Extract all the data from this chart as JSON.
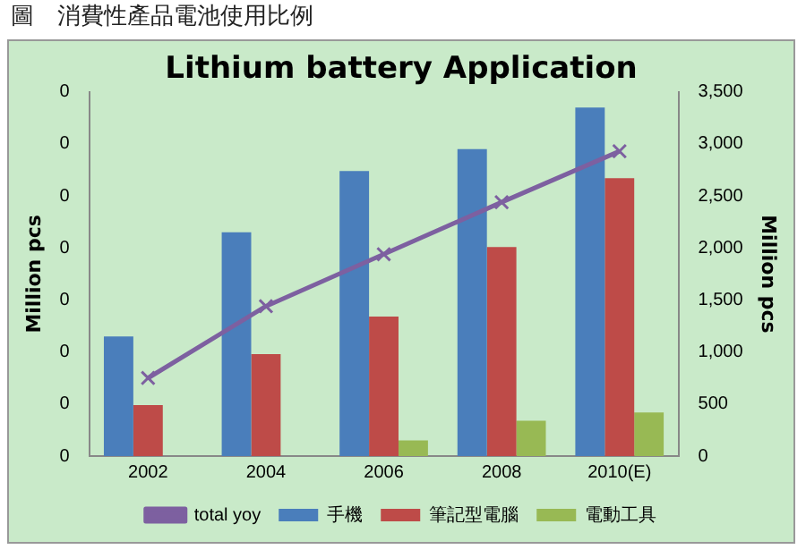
{
  "chart_data": {
    "type": "bar",
    "title": "圖　消費性產品電池使用比例",
    "subtitle": "Lithium battery Application",
    "ylabel": "Million pcs",
    "y2label": "Million pcs",
    "categories": [
      "2002",
      "2004",
      "2006",
      "2008",
      "2010(E)"
    ],
    "series": [
      {
        "name": "手機",
        "color": "#4a7ebb",
        "values": [
          1150,
          2150,
          2740,
          2950,
          3350
        ]
      },
      {
        "name": "筆記型電腦",
        "color": "#be4b48",
        "values": [
          490,
          980,
          1340,
          2010,
          2670
        ]
      },
      {
        "name": "電動工具",
        "color": "#98b954",
        "values": [
          0,
          0,
          150,
          340,
          420
        ]
      },
      {
        "name": "total yoy",
        "type": "line",
        "color": "#7d60a0",
        "marker": "cross",
        "values": [
          750,
          1440,
          1940,
          2440,
          2930
        ]
      }
    ],
    "annotations": [
      "0",
      "0",
      "0",
      "0",
      "0",
      "0",
      "0",
      "0"
    ],
    "ylim": [
      0,
      3500
    ],
    "yticks": [
      {
        "value": 0,
        "label": "0"
      },
      {
        "value": 500,
        "label": "500"
      },
      {
        "value": 1000,
        "label": "1,000"
      },
      {
        "value": 1500,
        "label": "1,500"
      },
      {
        "value": 2000,
        "label": "2,000"
      },
      {
        "value": 2500,
        "label": "2,500"
      },
      {
        "value": 3000,
        "label": "3,000"
      },
      {
        "value": 3500,
        "label": "3,500"
      }
    ],
    "grid": false,
    "legend": "bottom"
  }
}
